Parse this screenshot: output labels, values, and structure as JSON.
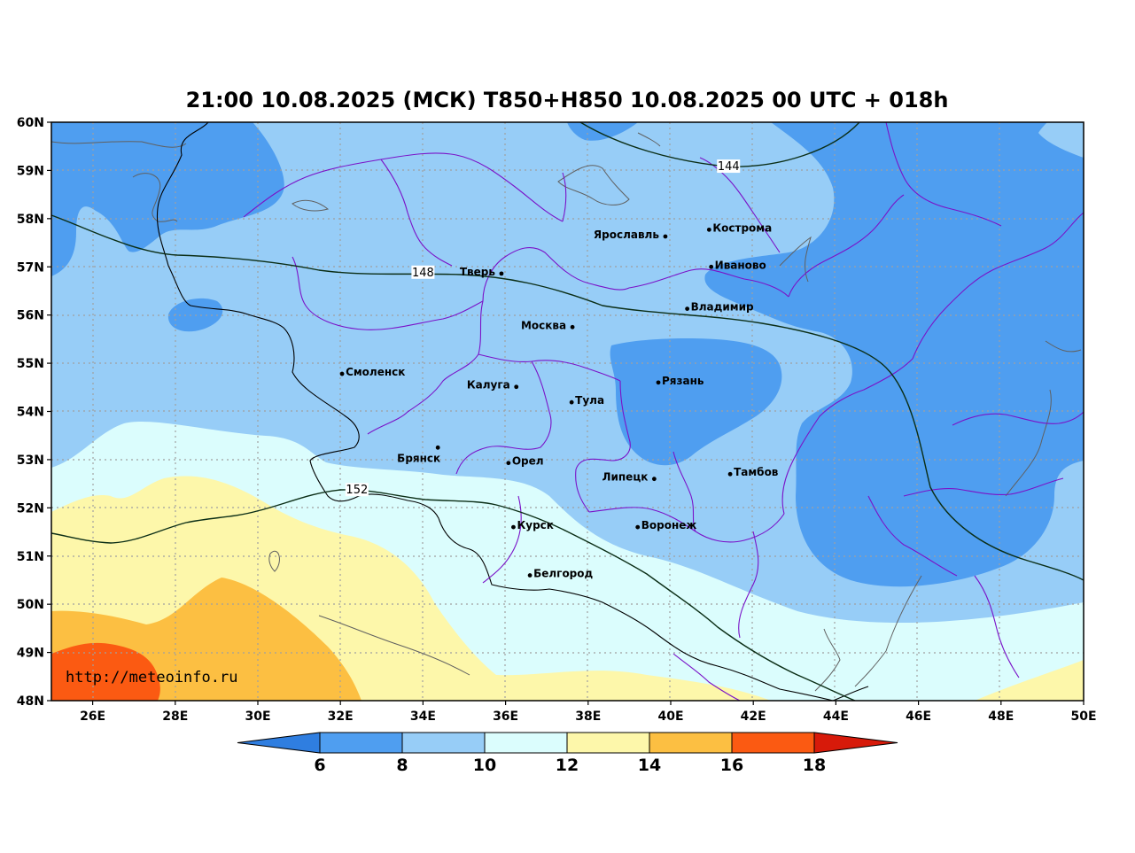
{
  "title": "21:00 10.08.2025 (МСК) T850+H850 10.08.2025 00 UTC + 018h",
  "watermark": "http://meteoinfo.ru",
  "axes": {
    "lon_min": 25,
    "lon_max": 50,
    "lat_min": 48,
    "lat_max": 60,
    "lat_ticks": [
      "60N",
      "59N",
      "58N",
      "57N",
      "56N",
      "55N",
      "54N",
      "53N",
      "52N",
      "51N",
      "50N",
      "49N",
      "48N"
    ],
    "lon_ticks": [
      {
        "lon": 26,
        "label": "26E"
      },
      {
        "lon": 28,
        "label": "28E"
      },
      {
        "lon": 30,
        "label": "30E"
      },
      {
        "lon": 32,
        "label": "32E"
      },
      {
        "lon": 34,
        "label": "34E"
      },
      {
        "lon": 36,
        "label": "36E"
      },
      {
        "lon": 38,
        "label": "38E"
      },
      {
        "lon": 40,
        "label": "40E"
      },
      {
        "lon": 42,
        "label": "42E"
      },
      {
        "lon": 44,
        "label": "44E"
      },
      {
        "lon": 46,
        "label": "46E"
      },
      {
        "lon": 48,
        "label": "48E"
      },
      {
        "lon": 50,
        "label": "50E"
      }
    ],
    "grid": true
  },
  "cities": [
    {
      "name": "Ярославль",
      "lon": 39.87,
      "lat": 57.63,
      "label_side": "left"
    },
    {
      "name": "Кострома",
      "lon": 40.93,
      "lat": 57.77,
      "label_side": "right"
    },
    {
      "name": "Иваново",
      "lon": 40.98,
      "lat": 57.0,
      "label_side": "right"
    },
    {
      "name": "Тверь",
      "lon": 35.9,
      "lat": 56.86,
      "label_side": "left"
    },
    {
      "name": "Владимир",
      "lon": 40.4,
      "lat": 56.13,
      "label_side": "right"
    },
    {
      "name": "Москва",
      "lon": 37.62,
      "lat": 55.75,
      "label_side": "left"
    },
    {
      "name": "Смоленск",
      "lon": 32.04,
      "lat": 54.78,
      "label_side": "right"
    },
    {
      "name": "Калуга",
      "lon": 36.26,
      "lat": 54.51,
      "label_side": "left"
    },
    {
      "name": "Рязань",
      "lon": 39.7,
      "lat": 54.6,
      "label_side": "right"
    },
    {
      "name": "Тула",
      "lon": 37.6,
      "lat": 54.19,
      "label_side": "right"
    },
    {
      "name": "Брянск",
      "lon": 34.36,
      "lat": 53.25,
      "label_side": "below-left"
    },
    {
      "name": "Орел",
      "lon": 36.07,
      "lat": 52.93,
      "label_side": "right"
    },
    {
      "name": "Липецк",
      "lon": 39.6,
      "lat": 52.6,
      "label_side": "left"
    },
    {
      "name": "Тамбов",
      "lon": 41.44,
      "lat": 52.7,
      "label_side": "right"
    },
    {
      "name": "Курск",
      "lon": 36.19,
      "lat": 51.6,
      "label_side": "right"
    },
    {
      "name": "Воронеж",
      "lon": 39.2,
      "lat": 51.6,
      "label_side": "right"
    },
    {
      "name": "Белгород",
      "lon": 36.59,
      "lat": 50.6,
      "label_side": "right"
    }
  ],
  "isohypse_labels": [
    {
      "text": "144",
      "lon": 41.4,
      "lat": 59.08
    },
    {
      "text": "148",
      "lon": 34.0,
      "lat": 56.88
    },
    {
      "text": "152",
      "lon": 32.4,
      "lat": 52.37
    }
  ],
  "colorbar": {
    "tick_labels": [
      "6",
      "8",
      "10",
      "12",
      "14",
      "16",
      "18"
    ],
    "colors": [
      "#2f7ee0",
      "#4f9ef0",
      "#97cdf7",
      "#dbfdfd",
      "#fdf7aa",
      "#fcbf42",
      "#fb5a12",
      "#d71a0a"
    ]
  }
}
